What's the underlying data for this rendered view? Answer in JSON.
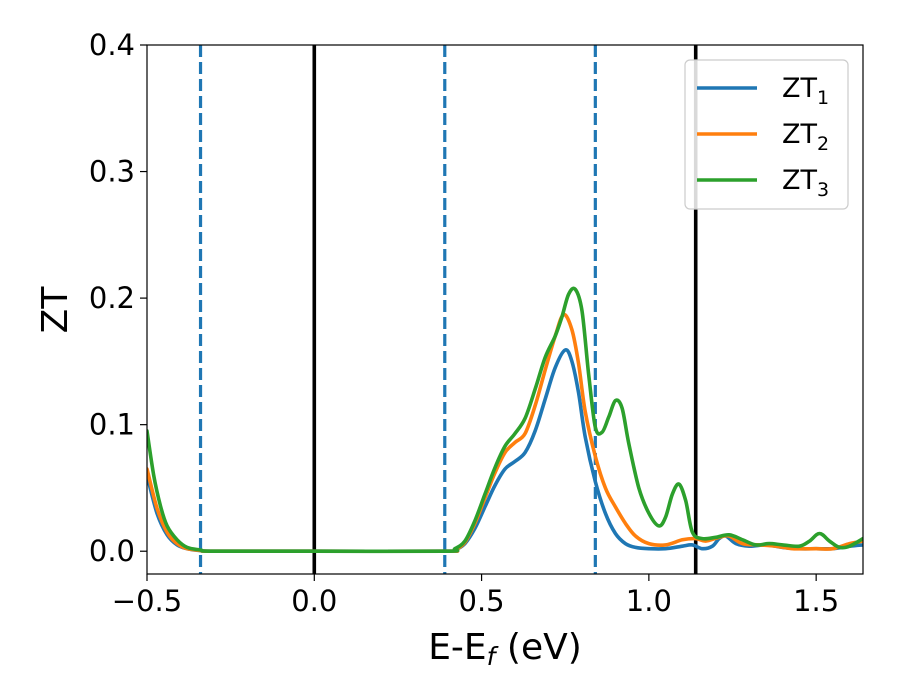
{
  "chart_data": {
    "type": "line",
    "title": "",
    "xlabel": "E-E",
    "xlabel_sub": "f",
    "xlabel_unit": " (eV)",
    "ylabel": "ZT",
    "xlim": [
      -0.5,
      1.64
    ],
    "ylim": [
      -0.018,
      0.4
    ],
    "grid": false,
    "legend_position": "top-right",
    "x_ticks": [
      -0.5,
      0.0,
      0.5,
      1.0,
      1.5
    ],
    "x_tick_labels": [
      "−0.5",
      "0.0",
      "0.5",
      "1.0",
      "1.5"
    ],
    "y_ticks": [
      0.0,
      0.1,
      0.2,
      0.3,
      0.4
    ],
    "y_tick_labels": [
      "0.0",
      "0.1",
      "0.2",
      "0.3",
      "0.4"
    ],
    "vlines_solid": [
      0.0,
      1.14
    ],
    "vlines_dashed": [
      -0.34,
      0.39,
      0.84
    ],
    "vline_solid_color": "#000000",
    "vline_dashed_color": "#1f77b4",
    "series": [
      {
        "name": "ZT",
        "name_sub": "1",
        "color": "#1f77b4",
        "points": [
          [
            -0.5,
            0.06
          ],
          [
            -0.47,
            0.03
          ],
          [
            -0.44,
            0.013
          ],
          [
            -0.41,
            0.005
          ],
          [
            -0.38,
            0.002
          ],
          [
            -0.34,
            0.0005
          ],
          [
            -0.3,
            0.0
          ],
          [
            0.0,
            0.0
          ],
          [
            0.39,
            0.0
          ],
          [
            0.42,
            0.001
          ],
          [
            0.45,
            0.006
          ],
          [
            0.48,
            0.018
          ],
          [
            0.51,
            0.035
          ],
          [
            0.54,
            0.052
          ],
          [
            0.57,
            0.065
          ],
          [
            0.6,
            0.071
          ],
          [
            0.63,
            0.078
          ],
          [
            0.66,
            0.095
          ],
          [
            0.69,
            0.12
          ],
          [
            0.72,
            0.145
          ],
          [
            0.75,
            0.159
          ],
          [
            0.77,
            0.15
          ],
          [
            0.79,
            0.125
          ],
          [
            0.81,
            0.09
          ],
          [
            0.84,
            0.055
          ],
          [
            0.87,
            0.03
          ],
          [
            0.9,
            0.014
          ],
          [
            0.93,
            0.006
          ],
          [
            0.96,
            0.003
          ],
          [
            1.0,
            0.002
          ],
          [
            1.05,
            0.002
          ],
          [
            1.1,
            0.004
          ],
          [
            1.13,
            0.005
          ],
          [
            1.16,
            0.002
          ],
          [
            1.19,
            0.004
          ],
          [
            1.21,
            0.01
          ],
          [
            1.23,
            0.012
          ],
          [
            1.26,
            0.006
          ],
          [
            1.3,
            0.004
          ],
          [
            1.35,
            0.005
          ],
          [
            1.4,
            0.003
          ],
          [
            1.45,
            0.002
          ],
          [
            1.5,
            0.002
          ],
          [
            1.55,
            0.002
          ],
          [
            1.6,
            0.004
          ],
          [
            1.64,
            0.005
          ]
        ]
      },
      {
        "name": "ZT",
        "name_sub": "2",
        "color": "#ff7f0e",
        "points": [
          [
            -0.5,
            0.065
          ],
          [
            -0.47,
            0.034
          ],
          [
            -0.44,
            0.015
          ],
          [
            -0.41,
            0.006
          ],
          [
            -0.38,
            0.002
          ],
          [
            -0.34,
            0.0006
          ],
          [
            -0.3,
            0.0
          ],
          [
            0.0,
            0.0
          ],
          [
            0.39,
            0.0
          ],
          [
            0.42,
            0.001
          ],
          [
            0.45,
            0.007
          ],
          [
            0.48,
            0.022
          ],
          [
            0.51,
            0.042
          ],
          [
            0.54,
            0.062
          ],
          [
            0.57,
            0.078
          ],
          [
            0.6,
            0.086
          ],
          [
            0.63,
            0.093
          ],
          [
            0.66,
            0.115
          ],
          [
            0.69,
            0.143
          ],
          [
            0.72,
            0.17
          ],
          [
            0.745,
            0.187
          ],
          [
            0.77,
            0.175
          ],
          [
            0.79,
            0.148
          ],
          [
            0.81,
            0.11
          ],
          [
            0.84,
            0.075
          ],
          [
            0.87,
            0.05
          ],
          [
            0.9,
            0.035
          ],
          [
            0.93,
            0.022
          ],
          [
            0.96,
            0.012
          ],
          [
            1.0,
            0.006
          ],
          [
            1.05,
            0.005
          ],
          [
            1.1,
            0.009
          ],
          [
            1.14,
            0.01
          ],
          [
            1.17,
            0.008
          ],
          [
            1.21,
            0.011
          ],
          [
            1.24,
            0.012
          ],
          [
            1.28,
            0.006
          ],
          [
            1.33,
            0.005
          ],
          [
            1.38,
            0.004
          ],
          [
            1.43,
            0.002
          ],
          [
            1.5,
            0.002
          ],
          [
            1.55,
            0.002
          ],
          [
            1.6,
            0.006
          ],
          [
            1.64,
            0.008
          ]
        ]
      },
      {
        "name": "ZT",
        "name_sub": "3",
        "color": "#2ca02c",
        "points": [
          [
            -0.5,
            0.095
          ],
          [
            -0.48,
            0.06
          ],
          [
            -0.46,
            0.036
          ],
          [
            -0.44,
            0.02
          ],
          [
            -0.41,
            0.009
          ],
          [
            -0.38,
            0.003
          ],
          [
            -0.34,
            0.001
          ],
          [
            -0.3,
            0.0
          ],
          [
            0.0,
            0.0
          ],
          [
            0.39,
            0.0
          ],
          [
            0.42,
            0.002
          ],
          [
            0.45,
            0.008
          ],
          [
            0.48,
            0.024
          ],
          [
            0.51,
            0.045
          ],
          [
            0.54,
            0.066
          ],
          [
            0.57,
            0.083
          ],
          [
            0.6,
            0.093
          ],
          [
            0.63,
            0.105
          ],
          [
            0.66,
            0.128
          ],
          [
            0.69,
            0.153
          ],
          [
            0.72,
            0.17
          ],
          [
            0.74,
            0.185
          ],
          [
            0.76,
            0.203
          ],
          [
            0.78,
            0.207
          ],
          [
            0.8,
            0.19
          ],
          [
            0.82,
            0.14
          ],
          [
            0.84,
            0.098
          ],
          [
            0.86,
            0.094
          ],
          [
            0.88,
            0.106
          ],
          [
            0.9,
            0.119
          ],
          [
            0.92,
            0.113
          ],
          [
            0.94,
            0.085
          ],
          [
            0.97,
            0.05
          ],
          [
            1.0,
            0.03
          ],
          [
            1.03,
            0.02
          ],
          [
            1.05,
            0.027
          ],
          [
            1.07,
            0.045
          ],
          [
            1.09,
            0.053
          ],
          [
            1.11,
            0.04
          ],
          [
            1.13,
            0.015
          ],
          [
            1.16,
            0.01
          ],
          [
            1.2,
            0.011
          ],
          [
            1.24,
            0.013
          ],
          [
            1.28,
            0.009
          ],
          [
            1.32,
            0.005
          ],
          [
            1.36,
            0.006
          ],
          [
            1.4,
            0.005
          ],
          [
            1.45,
            0.004
          ],
          [
            1.48,
            0.008
          ],
          [
            1.51,
            0.014
          ],
          [
            1.54,
            0.008
          ],
          [
            1.57,
            0.003
          ],
          [
            1.6,
            0.004
          ],
          [
            1.64,
            0.01
          ]
        ]
      }
    ]
  }
}
